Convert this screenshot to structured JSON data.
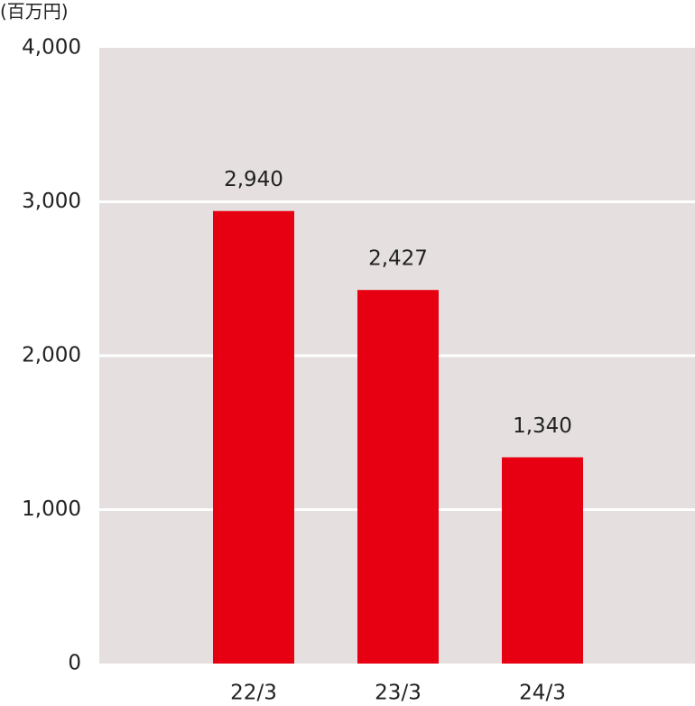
{
  "chart_data": {
    "type": "bar",
    "unit_label": "(百万円)",
    "categories": [
      "22/3",
      "23/3",
      "24/3"
    ],
    "values": [
      2940,
      2427,
      1340
    ],
    "value_labels": [
      "2,940",
      "2,427",
      "1,340"
    ],
    "color": "#e60012",
    "ylim": [
      0,
      4000
    ],
    "yticks": [
      0,
      {
        "value": 1000,
        "label": "1,000"
      },
      {
        "value": 2000,
        "label": "2,000"
      },
      {
        "value": 3000,
        "label": "3,000"
      },
      {
        "value": 4000,
        "label": "4,000"
      }
    ],
    "grid": true
  }
}
